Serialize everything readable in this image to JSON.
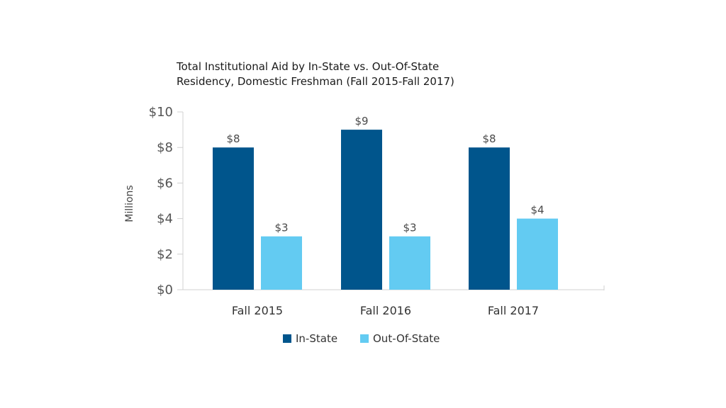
{
  "chart_data": {
    "type": "bar",
    "title_lines": [
      "Total Institutional Aid by In-State vs. Out-Of-State",
      "Residency, Domestic Freshman (Fall 2015-Fall 2017)"
    ],
    "ylabel": "Millions",
    "xlabel": "",
    "ylim": [
      0,
      10
    ],
    "yticks": [
      0,
      2,
      4,
      6,
      8,
      10
    ],
    "ytick_labels": [
      "$0",
      "$2",
      "$4",
      "$6",
      "$8",
      "$10"
    ],
    "categories": [
      "Fall 2015",
      "Fall 2016",
      "Fall 2017"
    ],
    "series": [
      {
        "name": "In-State",
        "color": "#00558c",
        "values": [
          8,
          9,
          8
        ],
        "labels": [
          "$8",
          "$9",
          "$8"
        ]
      },
      {
        "name": "Out-Of-State",
        "color": "#63cbf2",
        "values": [
          3,
          3,
          4
        ],
        "labels": [
          "$3",
          "$3",
          "$4"
        ]
      }
    ],
    "legend": "bottom-center",
    "grid": false
  }
}
